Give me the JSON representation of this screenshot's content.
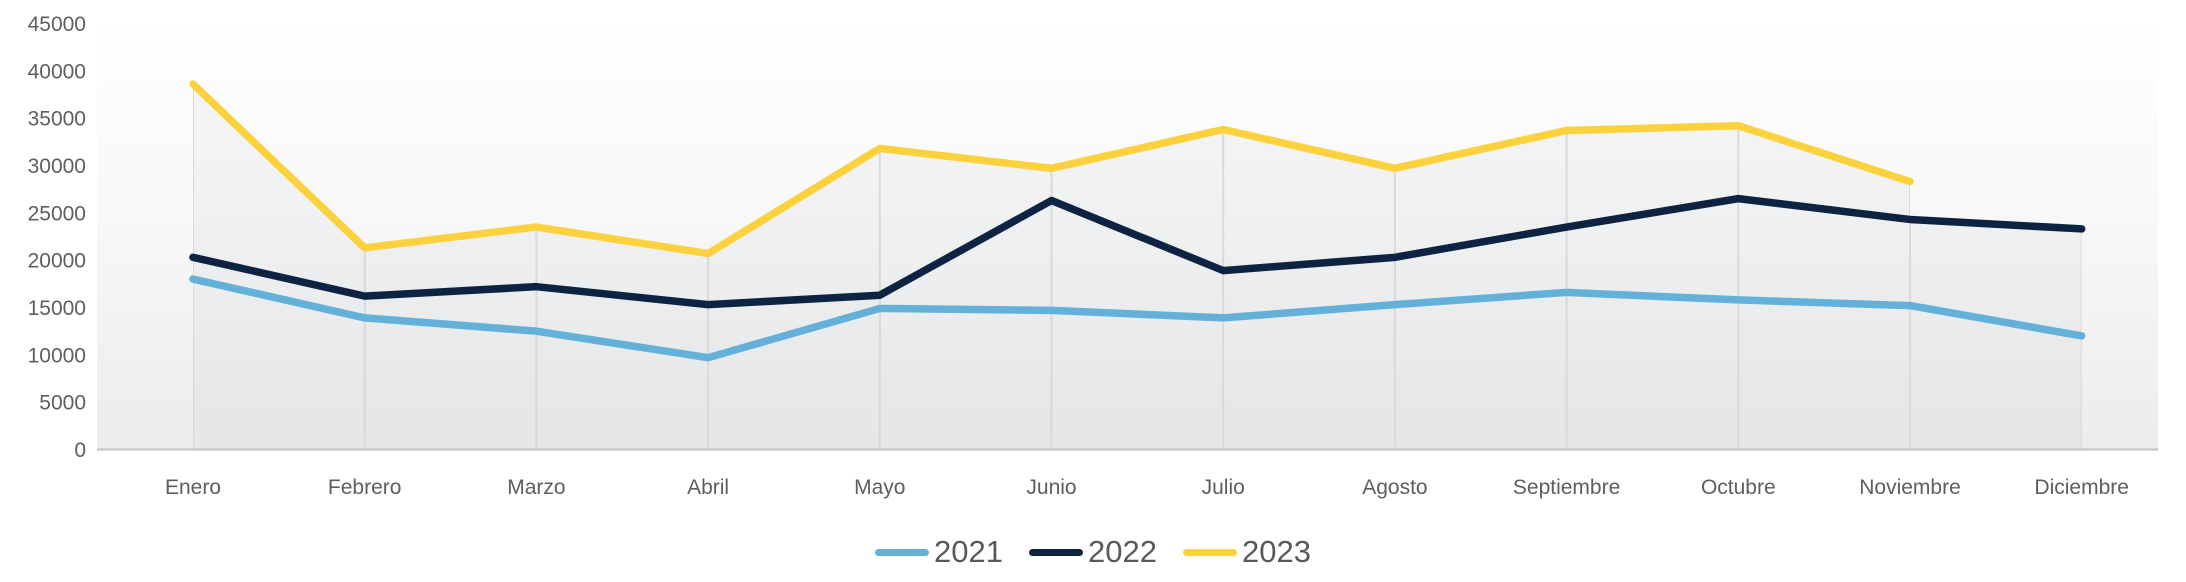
{
  "chart_data": {
    "type": "line",
    "title": "",
    "xlabel": "",
    "ylabel": "",
    "categories": [
      "Enero",
      "Febrero",
      "Marzo",
      "Abril",
      "Mayo",
      "Junio",
      "Julio",
      "Agosto",
      "Septiembre",
      "Octubre",
      "Noviembre",
      "Diciembre"
    ],
    "series": [
      {
        "name": "2021",
        "color": "#63B1D9",
        "values": [
          18000,
          13900,
          12500,
          9700,
          14900,
          14700,
          13900,
          15300,
          16600,
          15800,
          15200,
          12000
        ]
      },
      {
        "name": "2022",
        "color": "#0E2342",
        "values": [
          20300,
          16200,
          17200,
          15300,
          16300,
          26300,
          18900,
          20300,
          23500,
          26500,
          24300,
          23300
        ]
      },
      {
        "name": "2023",
        "color": "#FCD13E",
        "values": [
          38600,
          21300,
          23500,
          20700,
          31800,
          29700,
          33800,
          29700,
          33700,
          34200,
          28300,
          null
        ]
      }
    ],
    "ylim": [
      0,
      45000
    ],
    "ytick_step": 5000,
    "yticks": [
      45000,
      40000,
      35000,
      30000,
      25000,
      20000,
      15000,
      10000,
      5000,
      0
    ],
    "ytick_labels": [
      "45000",
      "40000",
      "35000",
      "30000",
      "25000",
      "20000",
      "15000",
      "10000",
      "5000",
      "0"
    ],
    "grid": {
      "vertical": true,
      "horizontal": false
    },
    "legend_position": "bottom-center",
    "notes": "2023 series has no Diciembre value; light gray area fill under line envelope",
    "styles": {
      "gridline_color": "#d8d9db",
      "baseline_color": "#c9cbcf",
      "axis_text_color": "#5d5e60",
      "legend_text_color": "#58595b",
      "area_fill_color": "rgba(118,124,135,0.055)"
    }
  }
}
